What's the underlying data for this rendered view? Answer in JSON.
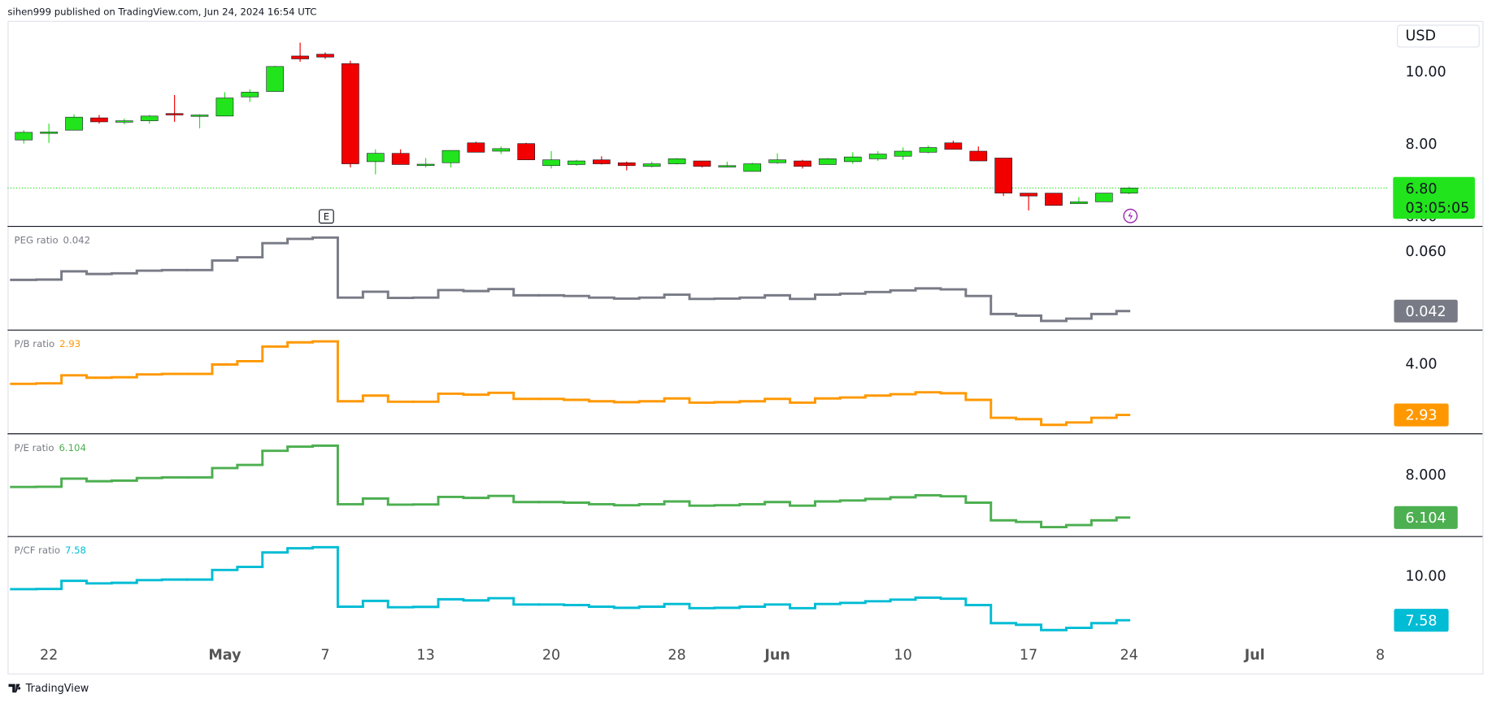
{
  "header": {
    "published": "sihen999 published on TradingView.com, Jun 24, 2024 16:54 UTC"
  },
  "currency": "USD",
  "earnings_marker": "E",
  "footer": {
    "brand": "TradingView"
  },
  "chart_data": [
    {
      "type": "candlestick",
      "x": [
        "2024-04-19",
        "2024-04-22",
        "2024-04-23",
        "2024-04-24",
        "2024-04-25",
        "2024-04-26",
        "2024-04-29",
        "2024-04-30",
        "2024-05-01",
        "2024-05-02",
        "2024-05-03",
        "2024-05-06",
        "2024-05-07",
        "2024-05-08",
        "2024-05-09",
        "2024-05-10",
        "2024-05-13",
        "2024-05-14",
        "2024-05-15",
        "2024-05-16",
        "2024-05-17",
        "2024-05-20",
        "2024-05-21",
        "2024-05-22",
        "2024-05-23",
        "2024-05-24",
        "2024-05-28",
        "2024-05-29",
        "2024-05-30",
        "2024-05-31",
        "2024-06-03",
        "2024-06-04",
        "2024-06-05",
        "2024-06-06",
        "2024-06-07",
        "2024-06-10",
        "2024-06-11",
        "2024-06-12",
        "2024-06-13",
        "2024-06-14",
        "2024-06-17",
        "2024-06-18",
        "2024-06-20",
        "2024-06-21",
        "2024-06-24"
      ],
      "open": [
        8.13,
        8.33,
        8.4,
        8.74,
        8.63,
        8.66,
        8.86,
        8.8,
        8.79,
        9.32,
        9.47,
        10.45,
        10.5,
        10.24,
        7.53,
        7.76,
        7.44,
        7.5,
        8.05,
        7.82,
        8.03,
        7.42,
        7.45,
        7.58,
        7.5,
        7.4,
        7.47,
        7.55,
        7.42,
        7.26,
        7.5,
        7.55,
        7.45,
        7.53,
        7.61,
        7.68,
        7.79,
        8.05,
        7.82,
        7.63,
        6.66,
        6.66,
        6.37,
        6.42,
        6.66
      ],
      "high": [
        8.4,
        8.58,
        8.84,
        8.82,
        8.72,
        8.82,
        9.37,
        8.84,
        9.45,
        9.53,
        10.18,
        10.82,
        10.55,
        10.32,
        7.87,
        7.87,
        7.63,
        7.84,
        8.08,
        7.95,
        8.05,
        7.82,
        7.58,
        7.68,
        7.53,
        7.53,
        7.63,
        7.55,
        7.53,
        7.5,
        7.76,
        7.58,
        7.63,
        7.79,
        7.82,
        7.92,
        7.97,
        8.11,
        7.95,
        7.63,
        6.66,
        6.66,
        6.55,
        6.66,
        6.84
      ],
      "low": [
        8.03,
        8.05,
        8.4,
        8.58,
        8.56,
        8.58,
        8.63,
        8.45,
        8.79,
        9.18,
        9.47,
        10.29,
        10.37,
        7.37,
        7.18,
        7.45,
        7.37,
        7.37,
        7.79,
        7.74,
        7.58,
        7.34,
        7.42,
        7.45,
        7.29,
        7.37,
        7.45,
        7.37,
        7.37,
        7.26,
        7.47,
        7.34,
        7.45,
        7.47,
        7.55,
        7.58,
        7.76,
        7.87,
        7.55,
        6.58,
        6.18,
        6.32,
        6.37,
        6.42,
        6.63
      ],
      "close": [
        8.34,
        8.35,
        8.76,
        8.63,
        8.66,
        8.79,
        8.82,
        8.82,
        9.29,
        9.45,
        10.16,
        10.37,
        10.42,
        7.47,
        7.76,
        7.45,
        7.46,
        7.84,
        7.79,
        7.89,
        7.58,
        7.58,
        7.55,
        7.47,
        7.42,
        7.47,
        7.61,
        7.4,
        7.42,
        7.47,
        7.58,
        7.4,
        7.61,
        7.66,
        7.74,
        7.82,
        7.92,
        7.87,
        7.55,
        6.66,
        6.58,
        6.32,
        6.42,
        6.66,
        6.8
      ],
      "up_color": "#22e41c",
      "down_color": "#f20000",
      "last_price_label": "6.80",
      "countdown": "03:05:05",
      "ylim": [
        5.74,
        11.42
      ],
      "yticks": [
        {
          "value": 6,
          "label": "6.00"
        },
        {
          "value": 8,
          "label": "8.00"
        },
        {
          "value": 10,
          "label": "10.00"
        }
      ],
      "xticks": [
        {
          "value": "2024-04-22",
          "label": "22"
        },
        {
          "value": "2024-05-01",
          "label": "May"
        },
        {
          "value": "2024-05-07",
          "label": "7"
        },
        {
          "value": "2024-05-13",
          "label": "13"
        },
        {
          "value": "2024-05-20",
          "label": "20"
        },
        {
          "value": "2024-05-28",
          "label": "28"
        },
        {
          "value": "2024-06-03",
          "label": "Jun"
        },
        {
          "value": "2024-06-10",
          "label": "10"
        },
        {
          "value": "2024-06-17",
          "label": "17"
        },
        {
          "value": "2024-06-24",
          "label": "24"
        },
        {
          "value": "2024-07-01",
          "label": "Jul"
        },
        {
          "value": "2024-07-08",
          "label": "8"
        }
      ]
    },
    {
      "type": "step",
      "ylim": [
        0.0362,
        0.0678
      ],
      "yticks": [
        {
          "value": 0.06,
          "label": "0.060"
        }
      ],
      "series": [
        {
          "name": "PEG ratio",
          "color": "#787b86",
          "values": [
            0.0515,
            0.0516,
            0.0541,
            0.0533,
            0.0535,
            0.0543,
            0.0545,
            0.0545,
            0.0574,
            0.0584,
            0.0627,
            0.064,
            0.0644,
            0.0461,
            0.0479,
            0.046,
            0.0461,
            0.0484,
            0.0481,
            0.0487,
            0.0468,
            0.0468,
            0.0466,
            0.0461,
            0.0458,
            0.0461,
            0.047,
            0.0457,
            0.0458,
            0.0461,
            0.0468,
            0.0457,
            0.047,
            0.0473,
            0.0478,
            0.0483,
            0.0489,
            0.0486,
            0.0466,
            0.0411,
            0.0406,
            0.039,
            0.0397,
            0.0411,
            0.042
          ]
        }
      ]
    },
    {
      "type": "step",
      "ylim": [
        2.53,
        4.73
      ],
      "yticks": [
        {
          "value": 4,
          "label": "4.00"
        }
      ],
      "series": [
        {
          "name": "P/B ratio",
          "color": "#ff9800",
          "values": [
            3.59,
            3.6,
            3.77,
            3.72,
            3.73,
            3.79,
            3.8,
            3.8,
            4.0,
            4.07,
            4.38,
            4.47,
            4.49,
            3.22,
            3.34,
            3.21,
            3.21,
            3.38,
            3.36,
            3.4,
            3.27,
            3.27,
            3.25,
            3.22,
            3.2,
            3.22,
            3.28,
            3.19,
            3.2,
            3.22,
            3.27,
            3.19,
            3.28,
            3.3,
            3.34,
            3.37,
            3.41,
            3.39,
            3.25,
            2.87,
            2.84,
            2.72,
            2.77,
            2.87,
            2.93
          ]
        }
      ]
    },
    {
      "type": "step",
      "ylim": [
        5.246,
        9.89
      ],
      "yticks": [
        {
          "value": 8,
          "label": "8.000"
        }
      ],
      "series": [
        {
          "name": "P/E ratio",
          "color": "#4caf50",
          "values": [
            7.486,
            7.495,
            7.863,
            7.746,
            7.773,
            7.89,
            7.917,
            7.917,
            8.339,
            8.482,
            9.12,
            9.308,
            9.353,
            6.705,
            6.965,
            6.687,
            6.696,
            7.037,
            6.992,
            7.082,
            6.804,
            6.804,
            6.777,
            6.705,
            6.66,
            6.705,
            6.831,
            6.642,
            6.66,
            6.705,
            6.804,
            6.642,
            6.831,
            6.876,
            6.947,
            7.019,
            7.109,
            7.064,
            6.777,
            5.978,
            5.906,
            5.673,
            5.763,
            5.978,
            6.104
          ]
        }
      ]
    },
    {
      "type": "step",
      "ylim": [
        6.53,
        12.21
      ],
      "yticks": [
        {
          "value": 10,
          "label": "10.00"
        }
      ],
      "series": [
        {
          "name": "P/CF ratio",
          "color": "#00bcd4",
          "values": [
            9.3,
            9.31,
            9.76,
            9.62,
            9.65,
            9.8,
            9.83,
            9.83,
            10.36,
            10.53,
            11.33,
            11.56,
            11.62,
            8.33,
            8.65,
            8.3,
            8.32,
            8.74,
            8.68,
            8.8,
            8.45,
            8.45,
            8.42,
            8.33,
            8.27,
            8.33,
            8.48,
            8.25,
            8.27,
            8.33,
            8.45,
            8.25,
            8.48,
            8.54,
            8.63,
            8.72,
            8.83,
            8.77,
            8.42,
            7.42,
            7.33,
            7.04,
            7.16,
            7.42,
            7.58
          ]
        }
      ]
    }
  ]
}
